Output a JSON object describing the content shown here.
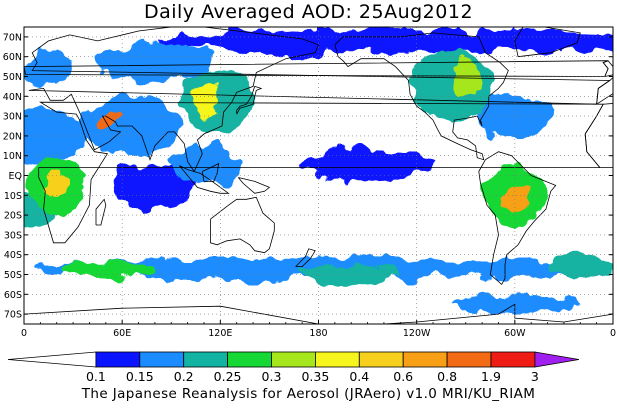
{
  "title": "Daily Averaged AOD: 25Aug2012",
  "footer": "The Japanese Reanalysis for Aerosol (JRAero) v1.0 MRI/KU_RIAM",
  "map": {
    "projection": "equirectangular",
    "lon_range": [
      0,
      360
    ],
    "lat_range": [
      -75,
      75
    ],
    "x_ticks": [
      "0",
      "60E",
      "120E",
      "180",
      "120W",
      "60W",
      "0"
    ],
    "y_ticks": [
      "70N",
      "60N",
      "50N",
      "40N",
      "30N",
      "20N",
      "10N",
      "EQ",
      "10S",
      "20S",
      "30S",
      "40S",
      "50S",
      "60S",
      "70S"
    ],
    "gridlines": true
  },
  "legend": {
    "levels": [
      "0.1",
      "0.15",
      "0.2",
      "0.25",
      "0.3",
      "0.35",
      "0.4",
      "0.6",
      "0.8",
      "1.9",
      "3"
    ],
    "colors": [
      "#ffffff",
      "#0a14ff",
      "#1a8cff",
      "#12b3a2",
      "#15d835",
      "#a6e61c",
      "#f6f61e",
      "#f7d01e",
      "#f7a016",
      "#f36a14",
      "#ee1c14",
      "#a020f0"
    ]
  },
  "aod_regions": [
    {
      "name": "arctic-north-atlantic",
      "level": 1,
      "cx": 250,
      "cy": 68,
      "rx": 170,
      "ry": 6
    },
    {
      "name": "arctic-north-pacific",
      "level": 1,
      "cx": 165,
      "cy": 67,
      "rx": 25,
      "ry": 8
    },
    {
      "name": "europe",
      "level": 2,
      "cx": 15,
      "cy": 55,
      "rx": 15,
      "ry": 10
    },
    {
      "name": "siberia",
      "level": 2,
      "cx": 80,
      "cy": 57,
      "rx": 35,
      "ry": 10
    },
    {
      "name": "north-africa-sahara",
      "level": 2,
      "cx": 10,
      "cy": 20,
      "rx": 28,
      "ry": 14
    },
    {
      "name": "arabia-india",
      "level": 2,
      "cx": 65,
      "cy": 25,
      "rx": 30,
      "ry": 15
    },
    {
      "name": "middle-east-dust",
      "level": 9,
      "cx": 52,
      "cy": 28,
      "rx": 6,
      "ry": 4
    },
    {
      "name": "east-asia",
      "level": 3,
      "cx": 118,
      "cy": 38,
      "rx": 22,
      "ry": 16
    },
    {
      "name": "china",
      "level": 6,
      "cx": 112,
      "cy": 38,
      "rx": 9,
      "ry": 8
    },
    {
      "name": "indian-ocean",
      "level": 1,
      "cx": 80,
      "cy": -5,
      "rx": 25,
      "ry": 12
    },
    {
      "name": "central-africa",
      "level": 4,
      "cx": 20,
      "cy": -5,
      "rx": 18,
      "ry": 14
    },
    {
      "name": "congo-basin",
      "level": 7,
      "cx": 20,
      "cy": -5,
      "rx": 8,
      "ry": 6
    },
    {
      "name": "south-atlantic-plume",
      "level": 3,
      "cx": 5,
      "cy": -18,
      "rx": 14,
      "ry": 10
    },
    {
      "name": "southeast-asia",
      "level": 2,
      "cx": 110,
      "cy": 5,
      "rx": 20,
      "ry": 10
    },
    {
      "name": "north-america",
      "level": 3,
      "cx": 262,
      "cy": 45,
      "rx": 25,
      "ry": 18
    },
    {
      "name": "north-america-smoke",
      "level": 5,
      "cx": 270,
      "cy": 50,
      "rx": 10,
      "ry": 8
    },
    {
      "name": "western-atlantic",
      "level": 2,
      "cx": 300,
      "cy": 30,
      "rx": 25,
      "ry": 12
    },
    {
      "name": "amazon-south-america",
      "level": 4,
      "cx": 300,
      "cy": -10,
      "rx": 18,
      "ry": 15
    },
    {
      "name": "amazon-fires",
      "level": 8,
      "cx": 300,
      "cy": -12,
      "rx": 8,
      "ry": 7
    },
    {
      "name": "southern-ocean-band",
      "level": 2,
      "cx": 180,
      "cy": -47,
      "rx": 175,
      "ry": 6
    },
    {
      "name": "southern-ocean-indian",
      "level": 4,
      "cx": 50,
      "cy": -48,
      "rx": 30,
      "ry": 5
    },
    {
      "name": "southern-ocean-pacific",
      "level": 3,
      "cx": 200,
      "cy": -50,
      "rx": 30,
      "ry": 5
    },
    {
      "name": "southern-ocean-atlantic",
      "level": 3,
      "cx": 340,
      "cy": -45,
      "rx": 20,
      "ry": 6
    },
    {
      "name": "antarctic-fringe",
      "level": 2,
      "cx": 300,
      "cy": -65,
      "rx": 40,
      "ry": 5
    },
    {
      "name": "tropical-pacific",
      "level": 1,
      "cx": 210,
      "cy": 5,
      "rx": 40,
      "ry": 8
    }
  ]
}
